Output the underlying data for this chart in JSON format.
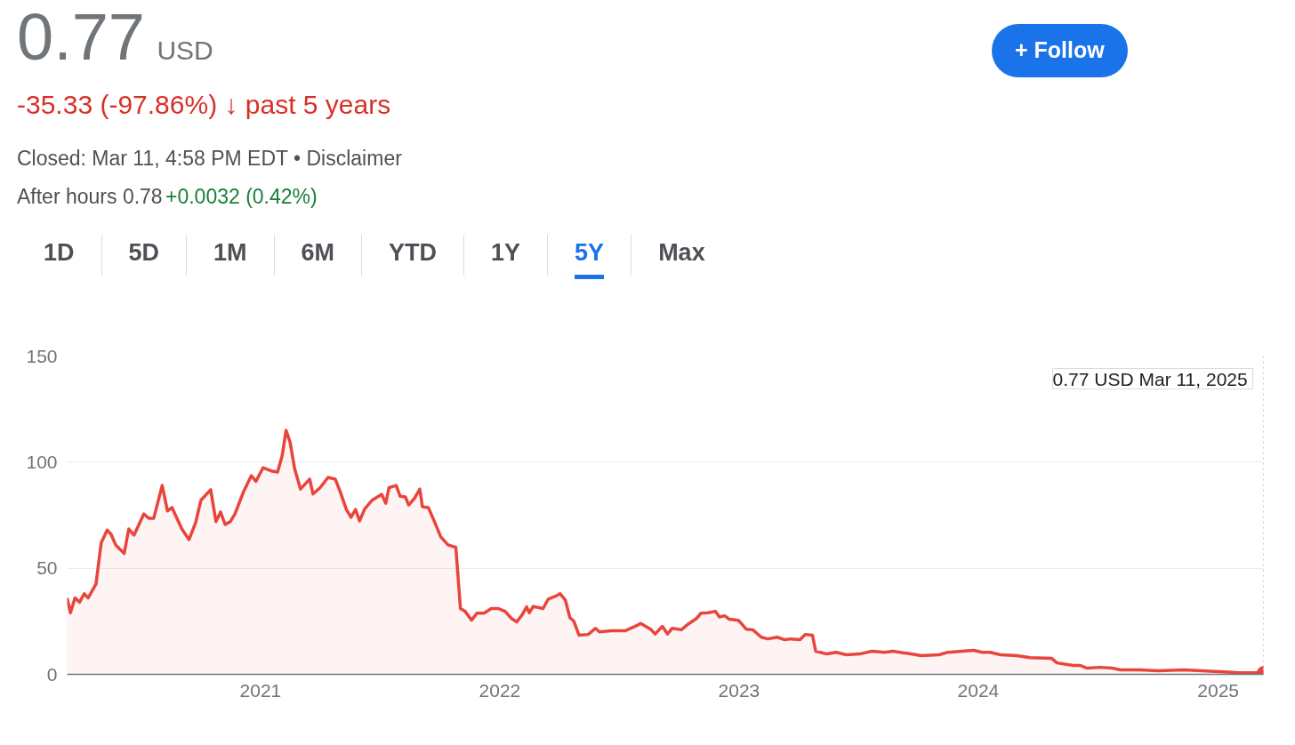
{
  "chart_data": {
    "type": "area",
    "title": "0.77",
    "subtitle": "USD",
    "annotations": [
      "-35.33 (-97.86%) ↓ past 5 years",
      "Closed: Mar 11, 4:58 PM EDT • Disclaimer",
      "After hours 0.78",
      "+0.0032 (0.42%)",
      "1D",
      "5D",
      "1M",
      "6M",
      "YTD",
      "1Y",
      "5Y",
      "Max",
      "+ Follow",
      "0.77 USD  Mar 11, 2025"
    ],
    "ref_lines": [
      {
        "axis": "x",
        "value": "2025-03-11",
        "color": "#9e9e9e",
        "line_style": "dotted"
      }
    ],
    "x": [
      "2020-03-12",
      "2020-03-17",
      "2020-03-24",
      "2020-03-31",
      "2020-04-07",
      "2020-04-13",
      "2020-04-25",
      "2020-05-03",
      "2020-05-12",
      "2020-05-18",
      "2020-05-25",
      "2020-06-07",
      "2020-06-14",
      "2020-06-22",
      "2020-07-07",
      "2020-07-15",
      "2020-07-22",
      "2020-08-04",
      "2020-08-12",
      "2020-08-19",
      "2020-09-03",
      "2020-09-14",
      "2020-09-24",
      "2020-10-02",
      "2020-10-17",
      "2020-10-25",
      "2020-11-01",
      "2020-11-08",
      "2020-11-16",
      "2020-11-23",
      "2020-12-06",
      "2020-12-18",
      "2020-12-25",
      "2021-01-05",
      "2021-01-19",
      "2021-01-27",
      "2021-02-03",
      "2021-02-09",
      "2021-02-15",
      "2021-02-22",
      "2021-03-03",
      "2021-03-17",
      "2021-03-22",
      "2021-04-02",
      "2021-04-14",
      "2021-04-25",
      "2021-05-03",
      "2021-05-12",
      "2021-05-19",
      "2021-05-26",
      "2021-06-01",
      "2021-06-09",
      "2021-06-20",
      "2021-07-05",
      "2021-07-11",
      "2021-07-16",
      "2021-07-27",
      "2021-08-02",
      "2021-08-10",
      "2021-08-15",
      "2021-08-24",
      "2021-09-01",
      "2021-09-05",
      "2021-09-14",
      "2021-09-24",
      "2021-10-03",
      "2021-10-14",
      "2021-10-26",
      "2021-11-02",
      "2021-11-09",
      "2021-11-19",
      "2021-11-27",
      "2021-12-08",
      "2021-12-19",
      "2021-12-30",
      "2022-01-09",
      "2022-01-19",
      "2022-01-27",
      "2022-02-04",
      "2022-02-11",
      "2022-02-15",
      "2022-02-21",
      "2022-03-08",
      "2022-03-16",
      "2022-03-27",
      "2022-04-03",
      "2022-04-11",
      "2022-04-18",
      "2022-04-24",
      "2022-05-02",
      "2022-05-16",
      "2022-05-27",
      "2022-06-02",
      "2022-06-20",
      "2022-07-11",
      "2022-07-29",
      "2022-08-04",
      "2022-08-19",
      "2022-08-26",
      "2022-09-06",
      "2022-09-14",
      "2022-09-21",
      "2022-10-05",
      "2022-10-16",
      "2022-10-28",
      "2022-11-04",
      "2022-11-15",
      "2022-11-26",
      "2022-12-02",
      "2022-12-10",
      "2022-12-17",
      "2022-12-31",
      "2023-01-12",
      "2023-01-22",
      "2023-02-04",
      "2023-02-14",
      "2023-02-28",
      "2023-03-12",
      "2023-03-21",
      "2023-04-04",
      "2023-04-12",
      "2023-04-23",
      "2023-04-28",
      "2023-05-15",
      "2023-05-29",
      "2023-06-14",
      "2023-07-04",
      "2023-07-23",
      "2023-08-11",
      "2023-08-24",
      "2023-09-20",
      "2023-10-06",
      "2023-11-02",
      "2023-11-16",
      "2023-12-07",
      "2023-12-25",
      "2024-01-07",
      "2024-01-19",
      "2024-02-04",
      "2024-02-29",
      "2024-03-20",
      "2024-04-22",
      "2024-04-30",
      "2024-05-25",
      "2024-06-04",
      "2024-06-15",
      "2024-07-05",
      "2024-07-23",
      "2024-08-05",
      "2024-09-04",
      "2024-10-01",
      "2024-11-10",
      "2024-12-07",
      "2025-01-03",
      "2025-01-30",
      "2025-03-11"
    ],
    "series": [
      {
        "color": "#e8453c",
        "values": [
          36,
          29,
          36,
          34,
          38,
          36,
          42.6,
          62,
          68,
          66,
          61,
          57,
          68.5,
          65.6,
          75.6,
          73.5,
          73.5,
          89,
          77,
          78.6,
          68.5,
          63.5,
          71.5,
          82,
          87,
          72,
          76.5,
          70.6,
          72,
          75.6,
          86,
          93.6,
          91,
          97.4,
          95.7,
          95.3,
          103,
          115,
          109.5,
          97,
          87.3,
          92,
          85,
          88,
          92.8,
          92,
          85.7,
          77.7,
          74,
          77.7,
          72.3,
          78,
          82,
          84.8,
          80.6,
          88,
          89,
          84,
          83.6,
          79.8,
          83,
          87.3,
          79,
          78.6,
          71.5,
          64.8,
          61,
          59.8,
          31,
          29.7,
          25.5,
          28.8,
          28.8,
          31,
          31,
          29.7,
          26.3,
          24.7,
          28,
          31.8,
          29,
          32,
          31,
          35.5,
          36.8,
          38,
          35,
          26.7,
          25,
          18.4,
          18.8,
          21.7,
          20,
          20.5,
          20.5,
          23,
          24,
          21.3,
          19,
          22.6,
          19,
          21.7,
          21,
          23.8,
          26.3,
          28.8,
          29,
          29.7,
          27,
          27.6,
          26,
          25.5,
          21.3,
          21,
          17.5,
          16.7,
          17.5,
          16.3,
          16.7,
          16.3,
          18.8,
          18.4,
          10.9,
          9.6,
          10.4,
          9.2,
          9.6,
          10.9,
          10.4,
          10.9,
          9.6,
          8.8,
          9.2,
          10.4,
          10.9,
          11.3,
          10.4,
          10.4,
          9.2,
          8.8,
          7.9,
          7.5,
          5.4,
          4.2,
          4.2,
          2.9,
          3.3,
          2.9,
          2.1,
          2.1,
          1.7,
          2.1,
          1.7,
          1.3,
          0.8,
          0.77
        ]
      }
    ],
    "xlim": [
      "2020-03-12",
      "2025-03-11"
    ],
    "xticks": [
      "2021",
      "2022",
      "2023",
      "2024",
      "2025"
    ],
    "ylim": [
      0,
      150
    ],
    "yticks": [
      0,
      50,
      100,
      150
    ],
    "grid": "y"
  }
}
